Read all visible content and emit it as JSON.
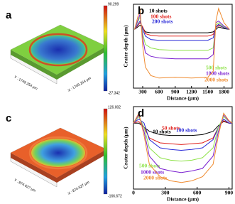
{
  "chart_data": [
    {
      "type": "line",
      "title": "b",
      "x_label": "Distance (µm)",
      "y_label": "Crater depth (µm)",
      "x": [
        150,
        250,
        300,
        350,
        450,
        600,
        900,
        1200,
        1500,
        1600,
        1650,
        1700,
        1800,
        1900
      ],
      "xlim": [
        130,
        1950
      ],
      "xticks": [
        300,
        600,
        900,
        1200,
        1500,
        1800
      ],
      "ylim": [
        -70,
        30
      ],
      "series": [
        {
          "name": "10 shots",
          "color": "#000000",
          "values": [
            0,
            5,
            2,
            -3,
            -4,
            -4,
            -4,
            -4,
            -4,
            -3,
            0,
            3,
            1,
            0
          ]
        },
        {
          "name": "100 shots",
          "color": "#e0201b",
          "values": [
            0,
            8,
            3,
            -5,
            -7,
            -8,
            -8,
            -8,
            -8,
            -6,
            2,
            5,
            2,
            0
          ]
        },
        {
          "name": "200 shots",
          "color": "#2a2ad8",
          "values": [
            0,
            10,
            0,
            -8,
            -12,
            -13,
            -13,
            -13,
            -13,
            -10,
            3,
            6,
            2,
            0
          ]
        },
        {
          "name": "500 shots",
          "color": "#8fe24a",
          "values": [
            0,
            15,
            -5,
            -18,
            -22,
            -24,
            -25,
            -25,
            -25,
            -22,
            5,
            8,
            3,
            0
          ]
        },
        {
          "name": "1000 shots",
          "color": "#7a1fd0",
          "values": [
            0,
            18,
            -10,
            -28,
            -32,
            -34,
            -35,
            -35,
            -35,
            -30,
            8,
            10,
            4,
            0
          ]
        },
        {
          "name": "2000 shots",
          "color": "#ef8a2e",
          "values": [
            0,
            25,
            -20,
            -45,
            -55,
            -58,
            -57,
            -58,
            -57,
            -50,
            10,
            25,
            8,
            0
          ]
        }
      ]
    },
    {
      "type": "line",
      "title": "d",
      "x_label": "Distance (µm)",
      "y_label": "Crater depth (µm)",
      "x": [
        0,
        50,
        100,
        150,
        250,
        350,
        450,
        550,
        650,
        750,
        800,
        850,
        900,
        930
      ],
      "xlim": [
        0,
        930
      ],
      "xticks": [
        0,
        300,
        600,
        900
      ],
      "ylim": [
        -80,
        20
      ],
      "series": [
        {
          "name": "10 shots",
          "color": "#000000",
          "values": [
            0,
            0,
            -5,
            -10,
            -14,
            -15,
            -15,
            -15,
            -14,
            -10,
            -3,
            2,
            0,
            0
          ]
        },
        {
          "name": "50 shots",
          "color": "#e0201b",
          "values": [
            0,
            2,
            -5,
            -18,
            -24,
            -25,
            -26,
            -25,
            -24,
            -18,
            -5,
            3,
            0,
            0
          ]
        },
        {
          "name": "100 shots",
          "color": "#2a2ad8",
          "values": [
            0,
            5,
            0,
            -20,
            -30,
            -32,
            -33,
            -32,
            -30,
            -20,
            -5,
            5,
            0,
            0
          ]
        },
        {
          "name": "500 shots",
          "color": "#8fe24a",
          "values": [
            0,
            8,
            -5,
            -30,
            -42,
            -45,
            -46,
            -45,
            -42,
            -30,
            -5,
            8,
            2,
            0
          ]
        },
        {
          "name": "1000 shots",
          "color": "#7a1fd0",
          "values": [
            0,
            10,
            -10,
            -40,
            -55,
            -58,
            -60,
            -58,
            -55,
            -40,
            -10,
            10,
            2,
            0
          ]
        },
        {
          "name": "2000 shots",
          "color": "#ef8a2e",
          "values": [
            0,
            12,
            -15,
            -50,
            -65,
            -70,
            -72,
            -70,
            -65,
            -50,
            -15,
            12,
            3,
            0
          ]
        }
      ]
    }
  ],
  "images": [
    {
      "label": "a",
      "colorbar_max": 90.299,
      "colorbar_min": -27.342,
      "y_axis": "Y : 1749.254 µm",
      "x_axis": "X : 1749.254 µm"
    },
    {
      "label": "c",
      "colorbar_max": 126.002,
      "colorbar_min": -166.672,
      "y_axis": "Y : 874.627 µm",
      "x_axis": "X : 874.627 µm"
    }
  ]
}
